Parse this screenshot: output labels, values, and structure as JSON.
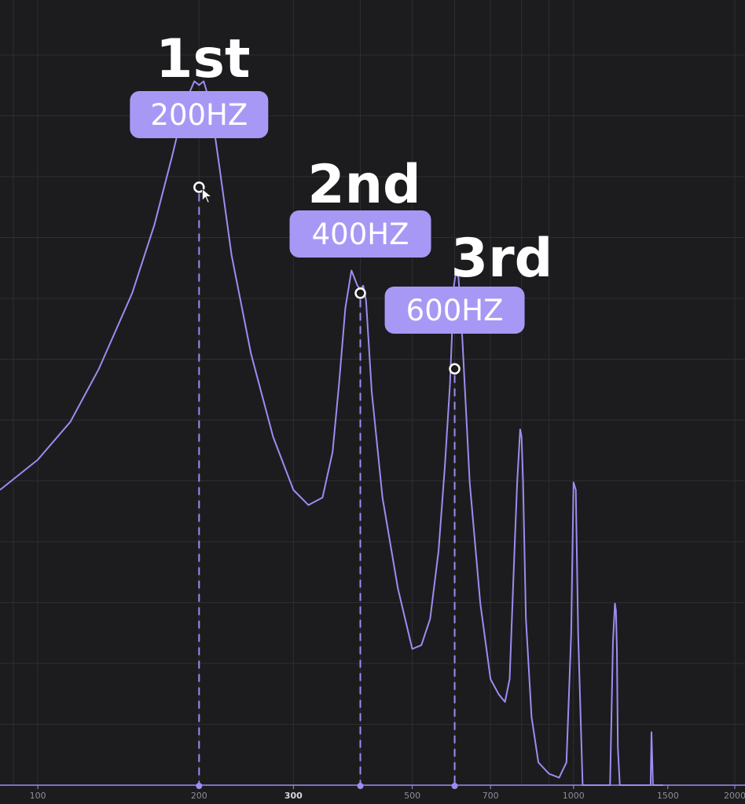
{
  "colors": {
    "background": "#1c1c1e",
    "grid": "#2e2e33",
    "curve": "#9d8cf2",
    "badge": "#a898f5",
    "marker": "#ffffff",
    "tick_text": "#8d8d96"
  },
  "chart_data": {
    "type": "line",
    "title": "",
    "xlabel": "",
    "ylabel": "",
    "x_scale": "log",
    "xlim": [
      85,
      2000
    ],
    "ylim": [
      0,
      100
    ],
    "grid": true,
    "x_ticks": [
      {
        "value": 100,
        "label": "100",
        "bold": false
      },
      {
        "value": 200,
        "label": "200",
        "bold": false
      },
      {
        "value": 300,
        "label": "300",
        "bold": true
      },
      {
        "value": 500,
        "label": "500",
        "bold": false
      },
      {
        "value": 700,
        "label": "700",
        "bold": false
      },
      {
        "value": 1000,
        "label": "1000",
        "bold": false
      },
      {
        "value": 1500,
        "label": "1500",
        "bold": false
      },
      {
        "value": 2000,
        "label": "2000",
        "bold": false
      }
    ],
    "series": [
      {
        "x": [
          85,
          100,
          115,
          130,
          150,
          165,
          178,
          188,
          196,
          200,
          204,
          210,
          218,
          230,
          250,
          275,
          300,
          320,
          340,
          355,
          365,
          375,
          385,
          390,
          395,
          400,
          405,
          410,
          420,
          440,
          470,
          500,
          520,
          540,
          560,
          575,
          588,
          598,
          604,
          610,
          620,
          640,
          670,
          700,
          725,
          745,
          760,
          775,
          785,
          795,
          800,
          805,
          815,
          835,
          860,
          900,
          940,
          970,
          990,
          1000,
          1010,
          1020,
          1040,
          1080,
          1120,
          1150,
          1170,
          1185,
          1195,
          1200,
          1205,
          1210,
          1220,
          1250,
          1290,
          1330,
          1360,
          1380,
          1393,
          1398,
          1402,
          1407,
          1420,
          1470
        ],
        "y": [
          39,
          43,
          48,
          55,
          65,
          74,
          83,
          90,
          93,
          92.5,
          93,
          90,
          82,
          70,
          57,
          46,
          39,
          37,
          38,
          44,
          53,
          63,
          68,
          67,
          66,
          65.5,
          66,
          64,
          52,
          38,
          26,
          18,
          18.5,
          22,
          31,
          42,
          53,
          66,
          68,
          67,
          59,
          40,
          24,
          14,
          12,
          11,
          14,
          30,
          40,
          47,
          46,
          40,
          22,
          9,
          3,
          1.5,
          1,
          3,
          20,
          40,
          39,
          20,
          0,
          0,
          0,
          0,
          0,
          19,
          24,
          23,
          18,
          5,
          0,
          0,
          0,
          0,
          0,
          0,
          0,
          7,
          4,
          0,
          0,
          0
        ]
      }
    ],
    "annotations": [
      {
        "title": "1st",
        "freq_label": "200HZ",
        "x": 200,
        "y": 79
      },
      {
        "title": "2nd",
        "freq_label": "400HZ",
        "x": 400,
        "y": 65
      },
      {
        "title": "3rd",
        "freq_label": "600HZ",
        "x": 600,
        "y": 55
      }
    ]
  }
}
